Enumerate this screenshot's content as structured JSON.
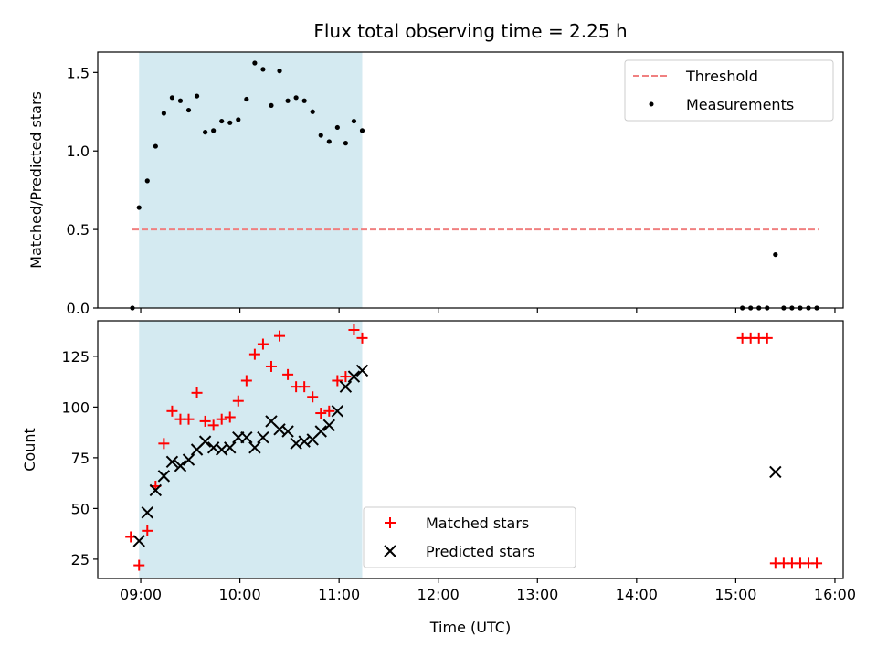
{
  "chart_data": [
    {
      "type": "scatter",
      "panel": "top",
      "title": "Flux total observing time = 2.25 h",
      "ylabel": "Matched/Predicted stars",
      "xlabel": "",
      "ylim": [
        0,
        1.63
      ],
      "xlim": [
        "08:34",
        "16:05"
      ],
      "yticks": [
        0.0,
        0.5,
        1.0,
        1.5
      ],
      "ytick_labels": [
        "0.0",
        "0.5",
        "1.0",
        "1.5"
      ],
      "shaded_region": {
        "x_start": "08:59",
        "x_end": "11:14",
        "color": "#d4eaf1"
      },
      "threshold": {
        "name": "Threshold",
        "value": 0.5,
        "x_start": "08:55",
        "x_end": "15:50",
        "color": "#f08080",
        "style": "dashed"
      },
      "legend": {
        "position": "upper-right",
        "entries": [
          "Threshold",
          "Measurements"
        ]
      },
      "series": [
        {
          "name": "Measurements",
          "marker": "dot",
          "color": "#000000",
          "x": [
            "08:55",
            "08:59",
            "09:04",
            "09:09",
            "09:14",
            "09:19",
            "09:24",
            "09:29",
            "09:34",
            "09:39",
            "09:44",
            "09:49",
            "09:54",
            "09:59",
            "10:04",
            "10:09",
            "10:14",
            "10:19",
            "10:24",
            "10:29",
            "10:34",
            "10:39",
            "10:44",
            "10:49",
            "10:54",
            "10:59",
            "11:04",
            "11:09",
            "11:14",
            "15:04",
            "15:09",
            "15:14",
            "15:19",
            "15:24",
            "15:29",
            "15:34",
            "15:39",
            "15:44",
            "15:49"
          ],
          "y": [
            0.0,
            0.64,
            0.81,
            1.03,
            1.24,
            1.34,
            1.32,
            1.26,
            1.35,
            1.12,
            1.13,
            1.19,
            1.18,
            1.2,
            1.33,
            1.56,
            1.52,
            1.29,
            1.51,
            1.32,
            1.34,
            1.32,
            1.25,
            1.1,
            1.06,
            1.15,
            1.05,
            1.19,
            1.13,
            0.0,
            0.0,
            0.0,
            0.0,
            0.34,
            0.0,
            0.0,
            0.0,
            0.0,
            0.0
          ]
        }
      ]
    },
    {
      "type": "scatter",
      "panel": "bottom",
      "title": "",
      "ylabel": "Count",
      "xlabel": "Time (UTC)",
      "ylim": [
        15.5,
        142.5
      ],
      "xlim": [
        "08:34",
        "16:05"
      ],
      "yticks": [
        25,
        50,
        75,
        100,
        125
      ],
      "ytick_labels": [
        "25",
        "50",
        "75",
        "100",
        "125"
      ],
      "xticks": [
        "09:00",
        "10:00",
        "11:00",
        "12:00",
        "13:00",
        "14:00",
        "15:00",
        "16:00"
      ],
      "xtick_labels": [
        "09:00",
        "10:00",
        "11:00",
        "12:00",
        "13:00",
        "14:00",
        "15:00",
        "16:00"
      ],
      "shaded_region": {
        "x_start": "08:59",
        "x_end": "11:14",
        "color": "#d4eaf1"
      },
      "legend": {
        "position": "lower-center",
        "entries": [
          "Matched stars",
          "Predicted stars"
        ]
      },
      "series": [
        {
          "name": "Matched stars",
          "marker": "plus",
          "color": "#ff0000",
          "x": [
            "08:54",
            "08:59",
            "09:04",
            "09:09",
            "09:14",
            "09:19",
            "09:24",
            "09:29",
            "09:34",
            "09:39",
            "09:44",
            "09:49",
            "09:54",
            "09:59",
            "10:04",
            "10:09",
            "10:14",
            "10:19",
            "10:24",
            "10:29",
            "10:34",
            "10:39",
            "10:44",
            "10:49",
            "10:54",
            "10:59",
            "11:04",
            "11:09",
            "11:14",
            "15:04",
            "15:09",
            "15:14",
            "15:19",
            "15:24",
            "15:29",
            "15:34",
            "15:39",
            "15:44",
            "15:49"
          ],
          "y": [
            36,
            22,
            39,
            61,
            82,
            98,
            94,
            94,
            107,
            93,
            91,
            94,
            95,
            103,
            113,
            126,
            131,
            120,
            135,
            116,
            110,
            110,
            105,
            97,
            98,
            113,
            115,
            138,
            134,
            134,
            134,
            134,
            134,
            23,
            23,
            23,
            23,
            23,
            23
          ]
        },
        {
          "name": "Predicted stars",
          "marker": "x",
          "color": "#000000",
          "x": [
            "08:59",
            "09:04",
            "09:09",
            "09:14",
            "09:19",
            "09:24",
            "09:29",
            "09:34",
            "09:39",
            "09:44",
            "09:49",
            "09:54",
            "09:59",
            "10:04",
            "10:09",
            "10:14",
            "10:19",
            "10:24",
            "10:29",
            "10:34",
            "10:39",
            "10:44",
            "10:49",
            "10:54",
            "10:59",
            "11:04",
            "11:09",
            "11:14",
            "15:24"
          ],
          "y": [
            34,
            48,
            59,
            66,
            73,
            71,
            74,
            79,
            83,
            80,
            79,
            80,
            85,
            85,
            80,
            85,
            93,
            89,
            88,
            82,
            83,
            84,
            88,
            91,
            98,
            110,
            115,
            118,
            68
          ]
        }
      ]
    }
  ]
}
